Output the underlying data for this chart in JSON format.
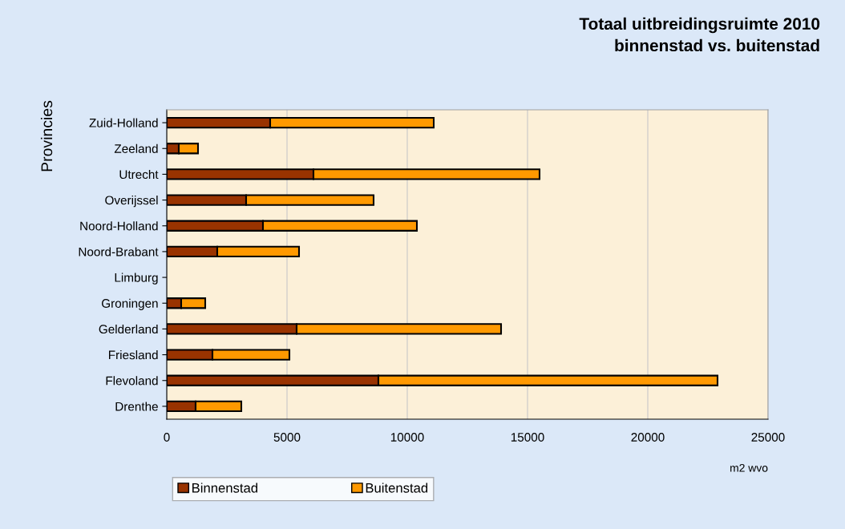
{
  "chart_data": {
    "type": "bar",
    "orientation": "horizontal",
    "stacked": true,
    "title": "Totaal uitbreidingsruimte 2010\nbinnenstad vs. buitenstad",
    "xlabel": "m2 wvo",
    "ylabel": "Provincies",
    "categories": [
      "Zuid-Holland",
      "Zeeland",
      "Utrecht",
      "Overijssel",
      "Noord-Holland",
      "Noord-Brabant",
      "Limburg",
      "Groningen",
      "Gelderland",
      "Friesland",
      "Flevoland",
      "Drenthe"
    ],
    "series": [
      {
        "name": "Binnenstad",
        "color": "#993300",
        "values": [
          4300,
          500,
          6100,
          3300,
          4000,
          2100,
          0,
          600,
          5400,
          1900,
          8800,
          1200
        ]
      },
      {
        "name": "Buitenstad",
        "color": "#ff9900",
        "values": [
          6800,
          800,
          9400,
          5300,
          6400,
          3400,
          0,
          1000,
          8500,
          3200,
          14100,
          1900
        ]
      }
    ],
    "xlim": [
      0,
      25000
    ],
    "xticks": [
      0,
      5000,
      10000,
      15000,
      20000,
      25000
    ],
    "grid": "x",
    "legend": "bottom left"
  }
}
